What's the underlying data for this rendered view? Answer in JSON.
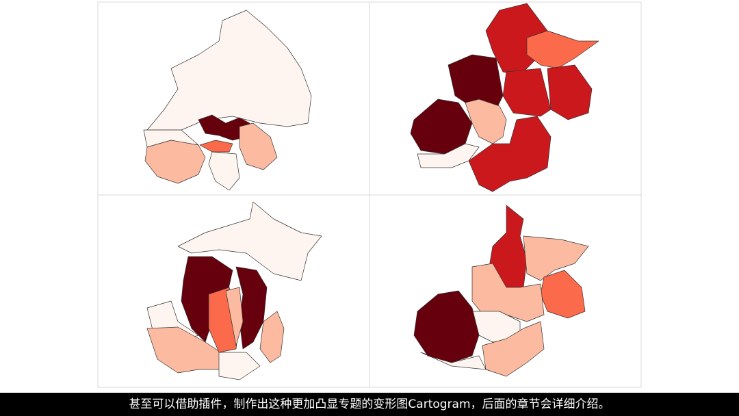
{
  "caption": "甚至可以借助插件，制作出这种更加凸显专题的变形图Cartogram，后面的章节会详细介绍。"
}
